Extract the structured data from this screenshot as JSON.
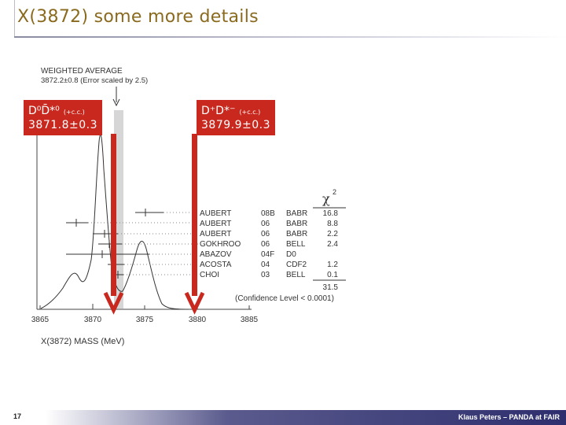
{
  "slide": {
    "title": "X(3872) some more details",
    "page_number": "17",
    "footer": "Klaus Peters – PANDA at FAIR"
  },
  "labels": {
    "dd0": {
      "state": "D⁰D̄*⁰",
      "cc": "(+c.c.)",
      "value": "3871.8±0.3"
    },
    "ddplus": {
      "state": "D⁺D*⁻",
      "cc": "(+c.c.)",
      "value": "3879.9±0.3"
    }
  },
  "plot": {
    "header_line1": "WEIGHTED AVERAGE",
    "header_line2": "3872.2±0.8 (Error scaled by 2.5)",
    "chi2_symbol": "χ",
    "chi2_exp": "2",
    "chi2_total": "31.5",
    "confidence": "(Confidence Level < 0.0001)",
    "x_axis_label": "X(3872) MASS (MeV)",
    "x_ticks": [
      "3865",
      "3870",
      "3875",
      "3880",
      "3885"
    ],
    "measurements": [
      {
        "author": "AUBERT",
        "year": "08B",
        "exp": "BABR",
        "chi2": "16.8"
      },
      {
        "author": "AUBERT",
        "year": "06",
        "exp": "BABR",
        "chi2": "8.8"
      },
      {
        "author": "AUBERT",
        "year": "06",
        "exp": "BABR",
        "chi2": "2.2"
      },
      {
        "author": "GOKHROO",
        "year": "06",
        "exp": "BELL",
        "chi2": "2.4"
      },
      {
        "author": "ABAZOV",
        "year": "04F",
        "exp": "D0",
        "chi2": ""
      },
      {
        "author": "ACOSTA",
        "year": "04",
        "exp": "CDF2",
        "chi2": "1.2"
      },
      {
        "author": "CHOI",
        "year": "03",
        "exp": "BELL",
        "chi2": "0.1"
      }
    ],
    "colors": {
      "arrow": "#c8281e",
      "band": "#d6d6d6",
      "title": "#8a6a1e"
    }
  }
}
